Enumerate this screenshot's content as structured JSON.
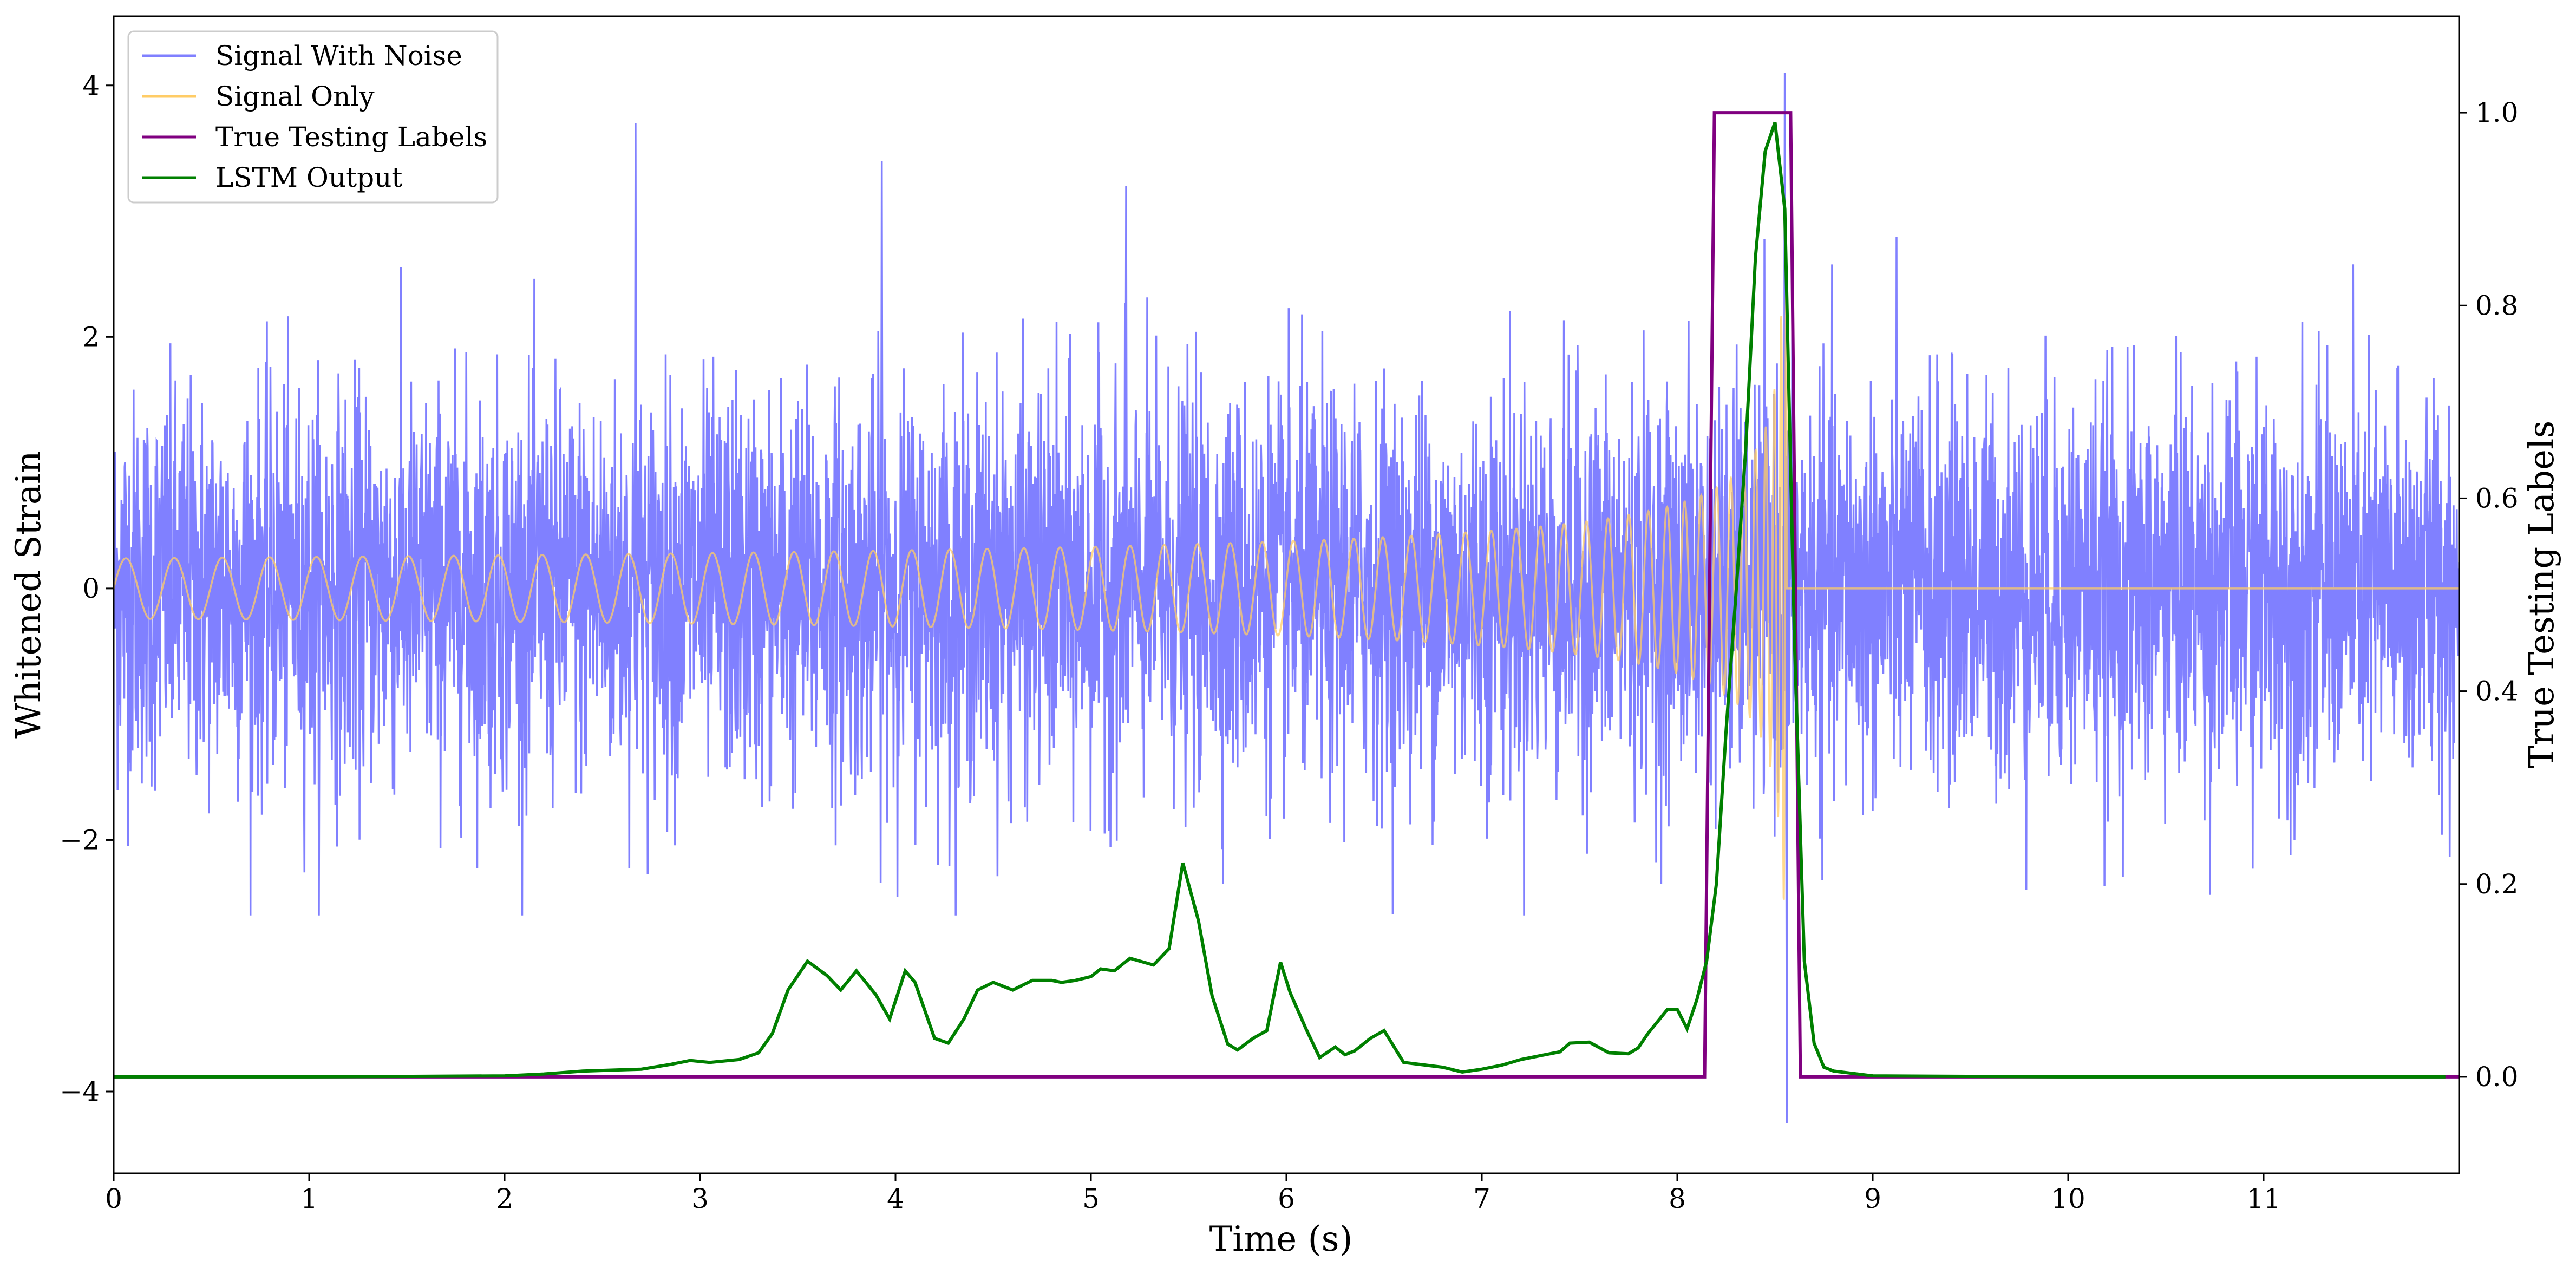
{
  "chart_data": {
    "type": "line",
    "xlabel": "Time (s)",
    "ylabel": "Whitened Strain",
    "y2label": "True Testing Labels",
    "xlim": [
      0,
      12
    ],
    "ylim": [
      -4.65,
      4.55
    ],
    "y2lim": [
      -0.1,
      1.1
    ],
    "xticks": [
      0,
      1,
      2,
      3,
      4,
      5,
      6,
      7,
      8,
      9,
      10,
      11
    ],
    "yticks": [
      -4,
      -2,
      0,
      2,
      4
    ],
    "yticklabels": [
      "−4",
      "−2",
      "0",
      "2",
      "4"
    ],
    "y2ticks": [
      0.0,
      0.2,
      0.4,
      0.6,
      0.8,
      1.0
    ],
    "y2ticklabels": [
      "0.0",
      "0.2",
      "0.4",
      "0.6",
      "0.8",
      "1.0"
    ],
    "grid": false,
    "legend_position": "top-left",
    "series": [
      {
        "name": "Signal With Noise",
        "axis": "left",
        "color": "#8080ff",
        "description_of_values": "Gaussian-like noise, approx std 0.8, range about -2.7 to 3.7; narrow spike to 4.1 / -4.25 near t=8.55",
        "x_range": [
          0,
          12
        ],
        "peak_points": [
          {
            "x": 2.67,
            "y": 3.7
          },
          {
            "x": 3.93,
            "y": 3.4
          },
          {
            "x": 5.18,
            "y": 3.2
          },
          {
            "x": 8.55,
            "y": 4.1
          },
          {
            "x": 8.56,
            "y": -4.25
          }
        ]
      },
      {
        "name": "Signal Only",
        "axis": "left",
        "color": "#ffcc66",
        "description_of_values": "chirp oscillation around 0, amplitude growing from about 0.02 to about 2.5 peak at t=8.56, then 0 afterwards",
        "x_range": [
          0,
          12
        ],
        "chirp": {
          "start": 0,
          "merger": 8.56,
          "amp_start": 0.02,
          "amp_peak": 2.5
        }
      },
      {
        "name": "True Testing Labels",
        "axis": "right",
        "color": "#800080",
        "x": [
          0,
          8.14,
          8.19,
          8.58,
          8.63,
          12
        ],
        "y": [
          0,
          0,
          1,
          1,
          0,
          0
        ]
      },
      {
        "name": "LSTM Output",
        "axis": "right",
        "color": "#008000",
        "x": [
          0,
          1.0,
          2.0,
          2.2,
          2.4,
          2.7,
          2.85,
          2.95,
          3.05,
          3.2,
          3.3,
          3.37,
          3.45,
          3.55,
          3.65,
          3.72,
          3.8,
          3.9,
          3.97,
          4.05,
          4.1,
          4.2,
          4.27,
          4.35,
          4.42,
          4.5,
          4.6,
          4.7,
          4.8,
          4.85,
          4.92,
          5.0,
          5.05,
          5.12,
          5.2,
          5.32,
          5.4,
          5.47,
          5.55,
          5.62,
          5.7,
          5.75,
          5.83,
          5.9,
          5.97,
          6.02,
          6.1,
          6.17,
          6.25,
          6.3,
          6.35,
          6.43,
          6.5,
          6.6,
          6.8,
          6.9,
          7.0,
          7.1,
          7.2,
          7.3,
          7.4,
          7.45,
          7.55,
          7.65,
          7.75,
          7.8,
          7.85,
          7.95,
          8.0,
          8.05,
          8.1,
          8.15,
          8.2,
          8.25,
          8.3,
          8.35,
          8.4,
          8.45,
          8.5,
          8.55,
          8.6,
          8.65,
          8.7,
          8.75,
          8.8,
          9.0,
          10.0,
          11.0,
          11.93
        ],
        "y": [
          0,
          0.0,
          0.001,
          0.003,
          0.006,
          0.008,
          0.013,
          0.017,
          0.015,
          0.018,
          0.025,
          0.045,
          0.09,
          0.12,
          0.105,
          0.09,
          0.11,
          0.085,
          0.06,
          0.11,
          0.098,
          0.04,
          0.035,
          0.06,
          0.09,
          0.098,
          0.09,
          0.1,
          0.1,
          0.098,
          0.1,
          0.104,
          0.112,
          0.11,
          0.123,
          0.116,
          0.133,
          0.222,
          0.162,
          0.084,
          0.034,
          0.028,
          0.04,
          0.048,
          0.119,
          0.087,
          0.05,
          0.02,
          0.031,
          0.023,
          0.027,
          0.04,
          0.048,
          0.015,
          0.01,
          0.005,
          0.008,
          0.012,
          0.018,
          0.022,
          0.026,
          0.035,
          0.036,
          0.025,
          0.024,
          0.03,
          0.045,
          0.07,
          0.07,
          0.05,
          0.08,
          0.12,
          0.2,
          0.36,
          0.5,
          0.65,
          0.85,
          0.96,
          0.99,
          0.9,
          0.45,
          0.12,
          0.035,
          0.01,
          0.006,
          0.001,
          0.0,
          0.0,
          0.0
        ]
      }
    ]
  }
}
